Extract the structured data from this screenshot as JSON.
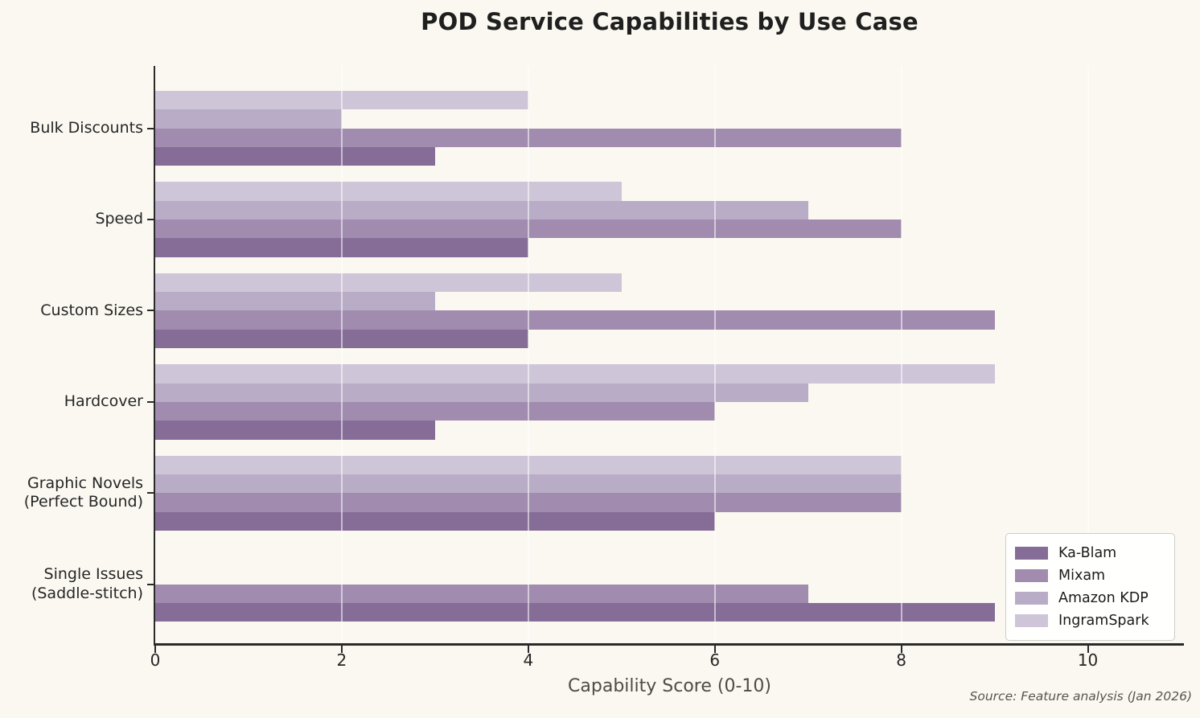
{
  "colors": {
    "background": "#FAF8F0",
    "spine": "#2a2a2a",
    "grid": "rgba(255,255,255,0.55)",
    "tick_label": "#262626",
    "axis_label": "#4f4b46",
    "source_text": "#5a5550",
    "legend_border": "#cccccc"
  },
  "chart_data": {
    "type": "bar",
    "orientation": "horizontal",
    "title": "POD Service Capabilities by Use Case",
    "xlabel": "Capability Score (0-10)",
    "ylabel": "",
    "source": "Source: Feature analysis (Jan 2026)",
    "categories": [
      "Bulk Discounts",
      "Speed",
      "Custom Sizes",
      "Hardcover",
      "Graphic Novels\n(Perfect Bound)",
      "Single Issues\n(Saddle-stitch)"
    ],
    "series": [
      {
        "name": "Ka-Blam",
        "color": "#866D98",
        "values": [
          3,
          4,
          4,
          3,
          6,
          9
        ]
      },
      {
        "name": "Mixam",
        "color": "#A18CAF",
        "values": [
          8,
          8,
          9,
          6,
          8,
          7
        ]
      },
      {
        "name": "Amazon KDP",
        "color": "#B9ACC6",
        "values": [
          2,
          7,
          3,
          7,
          8,
          0
        ]
      },
      {
        "name": "IngramSpark",
        "color": "#CFC5D8",
        "values": [
          4,
          5,
          5,
          9,
          8,
          0
        ]
      }
    ],
    "row_order_top_to_bottom": [
      "IngramSpark",
      "Amazon KDP",
      "Mixam",
      "Ka-Blam"
    ],
    "xticks": [
      0,
      2,
      4,
      6,
      8,
      10
    ],
    "xlim": [
      0,
      11.03
    ],
    "grid": "vertical, drawn over bars",
    "legend_position": "lower right"
  }
}
